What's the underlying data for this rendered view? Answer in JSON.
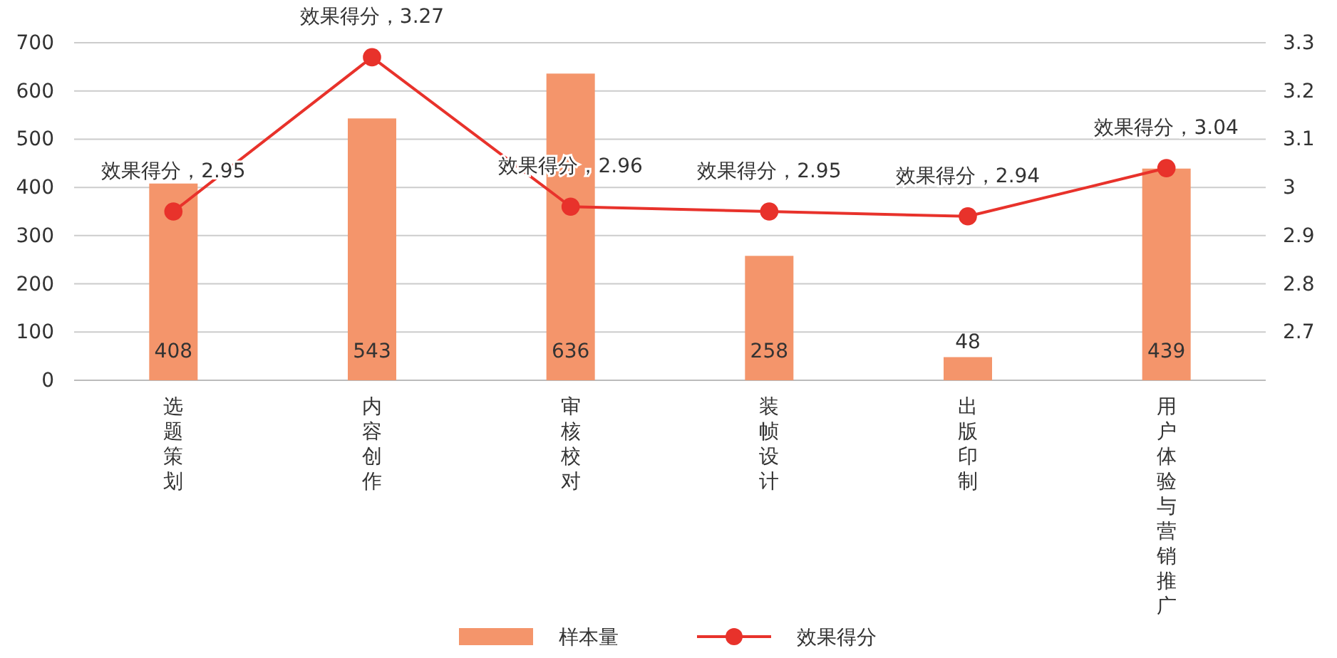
{
  "chart_data": {
    "type": "bar",
    "categories": [
      "选题策划",
      "内容创作",
      "审核校对",
      "装帧设计",
      "出版印制",
      "用户体验与营销推广"
    ],
    "series": [
      {
        "name": "样本量",
        "color": "#f4956b",
        "values": [
          408,
          543,
          636,
          258,
          48,
          439
        ],
        "data_labels": true
      },
      {
        "name": "效果得分",
        "type": "line",
        "axis": "y2",
        "color": "#e8322b",
        "marker": "circle",
        "values": [
          2.95,
          3.27,
          2.96,
          2.95,
          2.94,
          3.04
        ],
        "value_labels": [
          "效果得分，2.95",
          "效果得分，3.27",
          "效果得分，2.96",
          "效果得分，2.95",
          "效果得分，2.94",
          "效果得分，3.04"
        ]
      }
    ],
    "ylim": [
      0,
      700
    ],
    "yticks": [
      0,
      100,
      200,
      300,
      400,
      500,
      600,
      700
    ],
    "y2lim": [
      2.6,
      3.3
    ],
    "y2ticks": [
      2.7,
      2.8,
      2.9,
      {
        "value": 3,
        "label": "3"
      },
      3.1,
      3.2,
      3.3
    ],
    "grid": "y",
    "legend": "bottom"
  }
}
